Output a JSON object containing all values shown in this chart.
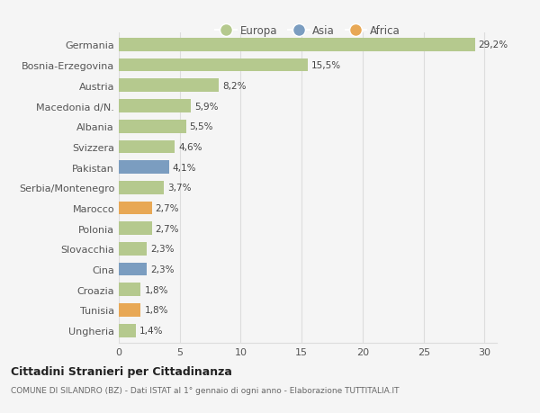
{
  "categories": [
    "Germania",
    "Bosnia-Erzegovina",
    "Austria",
    "Macedonia d/N.",
    "Albania",
    "Svizzera",
    "Pakistan",
    "Serbia/Montenegro",
    "Marocco",
    "Polonia",
    "Slovacchia",
    "Cina",
    "Croazia",
    "Tunisia",
    "Ungheria"
  ],
  "values": [
    29.2,
    15.5,
    8.2,
    5.9,
    5.5,
    4.6,
    4.1,
    3.7,
    2.7,
    2.7,
    2.3,
    2.3,
    1.8,
    1.8,
    1.4
  ],
  "labels": [
    "29,2%",
    "15,5%",
    "8,2%",
    "5,9%",
    "5,5%",
    "4,6%",
    "4,1%",
    "3,7%",
    "2,7%",
    "2,7%",
    "2,3%",
    "2,3%",
    "1,8%",
    "1,8%",
    "1,4%"
  ],
  "continent": [
    "Europa",
    "Europa",
    "Europa",
    "Europa",
    "Europa",
    "Europa",
    "Asia",
    "Europa",
    "Africa",
    "Europa",
    "Europa",
    "Asia",
    "Europa",
    "Africa",
    "Europa"
  ],
  "colors": {
    "Europa": "#b5c98e",
    "Asia": "#7b9dc0",
    "Africa": "#e8a855"
  },
  "background_color": "#f5f5f5",
  "grid_color": "#dddddd",
  "title": "Cittadini Stranieri per Cittadinanza",
  "subtitle": "COMUNE DI SILANDRO (BZ) - Dati ISTAT al 1° gennaio di ogni anno - Elaborazione TUTTITALIA.IT",
  "xlim": [
    0,
    31
  ],
  "xticks": [
    0,
    5,
    10,
    15,
    20,
    25,
    30
  ],
  "bar_height": 0.65
}
